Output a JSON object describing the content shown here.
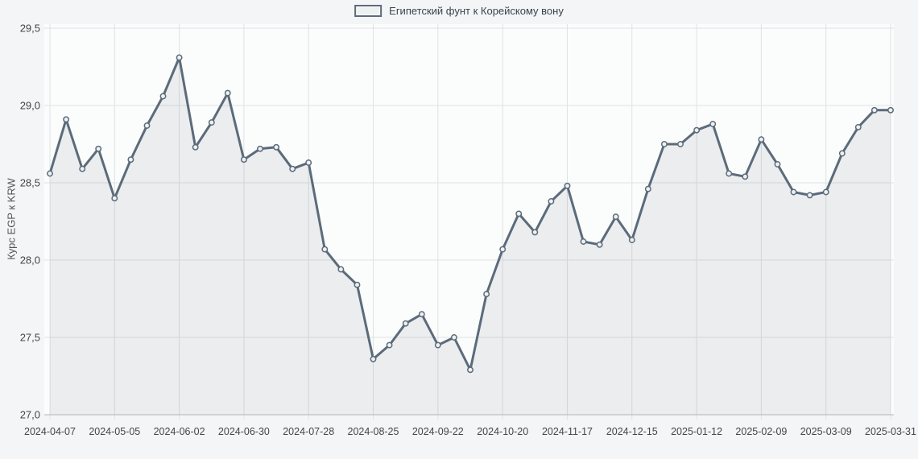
{
  "chart_data": {
    "type": "area",
    "legend_label": "Египетский фунт к Корейскому вону",
    "ylabel": "Курс EGP к KRW",
    "ylim": [
      27.0,
      29.5
    ],
    "grid": true,
    "legend_position": "top-center",
    "y_ticks": [
      29.5,
      29.0,
      28.5,
      28.0,
      27.5,
      27.0
    ],
    "y_tick_labels": [
      "29,5",
      "29,0",
      "28,5",
      "28,0",
      "27,5",
      "27,0"
    ],
    "x_tick_indices": [
      0,
      4,
      8,
      12,
      16,
      20,
      24,
      28,
      32,
      36,
      40,
      44,
      48,
      52
    ],
    "x_tick_labels": [
      "2024-04-07",
      "2024-05-05",
      "2024-06-02",
      "2024-06-30",
      "2024-07-28",
      "2024-08-25",
      "2024-09-22",
      "2024-10-20",
      "2024-11-17",
      "2024-12-15",
      "2025-01-12",
      "2025-02-09",
      "2025-03-09",
      "2025-03-31"
    ],
    "x": [
      "2024-04-07",
      "2024-04-14",
      "2024-04-21",
      "2024-04-28",
      "2024-05-05",
      "2024-05-12",
      "2024-05-19",
      "2024-05-26",
      "2024-06-02",
      "2024-06-09",
      "2024-06-16",
      "2024-06-23",
      "2024-06-30",
      "2024-07-07",
      "2024-07-14",
      "2024-07-21",
      "2024-07-28",
      "2024-08-04",
      "2024-08-11",
      "2024-08-18",
      "2024-08-25",
      "2024-09-01",
      "2024-09-08",
      "2024-09-15",
      "2024-09-22",
      "2024-09-29",
      "2024-10-06",
      "2024-10-13",
      "2024-10-20",
      "2024-10-27",
      "2024-11-03",
      "2024-11-10",
      "2024-11-17",
      "2024-11-24",
      "2024-12-01",
      "2024-12-08",
      "2024-12-15",
      "2024-12-22",
      "2024-12-29",
      "2025-01-05",
      "2025-01-12",
      "2025-01-19",
      "2025-01-26",
      "2025-02-02",
      "2025-02-09",
      "2025-02-16",
      "2025-02-23",
      "2025-03-02",
      "2025-03-09",
      "2025-03-16",
      "2025-03-23",
      "2025-03-30",
      "2025-03-31"
    ],
    "values": [
      28.56,
      28.91,
      28.59,
      28.72,
      28.4,
      28.65,
      28.87,
      29.06,
      29.31,
      28.73,
      28.89,
      29.08,
      28.65,
      28.72,
      28.73,
      28.59,
      28.63,
      28.07,
      27.94,
      27.84,
      27.36,
      27.45,
      27.59,
      27.65,
      27.45,
      27.5,
      27.29,
      27.78,
      28.07,
      28.3,
      28.18,
      28.38,
      28.48,
      28.12,
      28.1,
      28.28,
      28.13,
      28.46,
      28.75,
      28.75,
      28.84,
      28.88,
      28.56,
      28.54,
      28.78,
      28.62,
      28.44,
      28.42,
      28.44,
      28.69,
      28.86,
      28.97,
      28.97
    ],
    "colors": {
      "line": "#5c6b7a",
      "area": "rgba(96,112,128,0.10)",
      "marker_fill": "#eef1f2",
      "grid": "#dfe2e3",
      "axis": "#b2b5b7",
      "plot_bg": "#fbfcfc",
      "page_bg": "#f4f5f6",
      "tick_text": "#454545",
      "legend_text": "#36454f",
      "axis_title_text": "#555555"
    }
  }
}
